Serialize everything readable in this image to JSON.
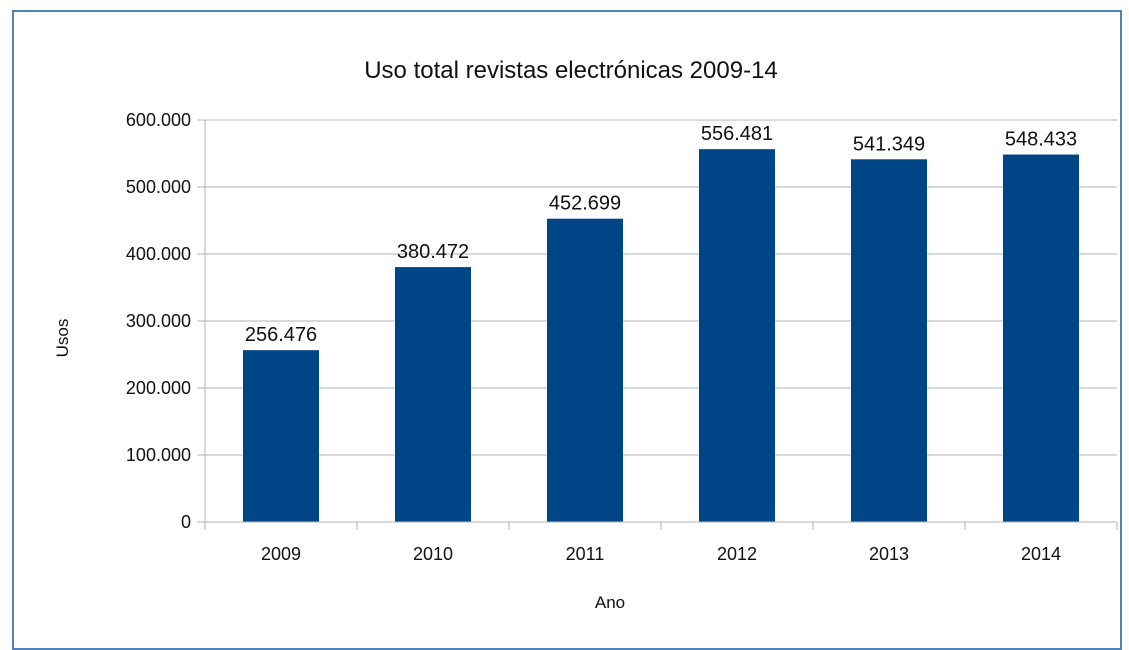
{
  "chart_data": {
    "type": "bar",
    "title": "Uso total revistas electrónicas 2009-14",
    "xlabel": "Ano",
    "ylabel": "Usos",
    "categories": [
      "2009",
      "2010",
      "2011",
      "2012",
      "2013",
      "2014"
    ],
    "values": [
      256476,
      380472,
      452699,
      556481,
      541349,
      548433
    ],
    "value_labels": [
      "256.476",
      "380.472",
      "452.699",
      "556.481",
      "541.349",
      "548.433"
    ],
    "ylim": [
      0,
      600000
    ],
    "yticks": [
      0,
      100000,
      200000,
      300000,
      400000,
      500000,
      600000
    ],
    "ytick_labels": [
      "0",
      "100.000",
      "200.000",
      "300.000",
      "400.000",
      "500.000",
      "600.000"
    ],
    "grid": true,
    "legend": "none",
    "bar_color": "#004586",
    "grid_color": "#b3b3b3"
  }
}
